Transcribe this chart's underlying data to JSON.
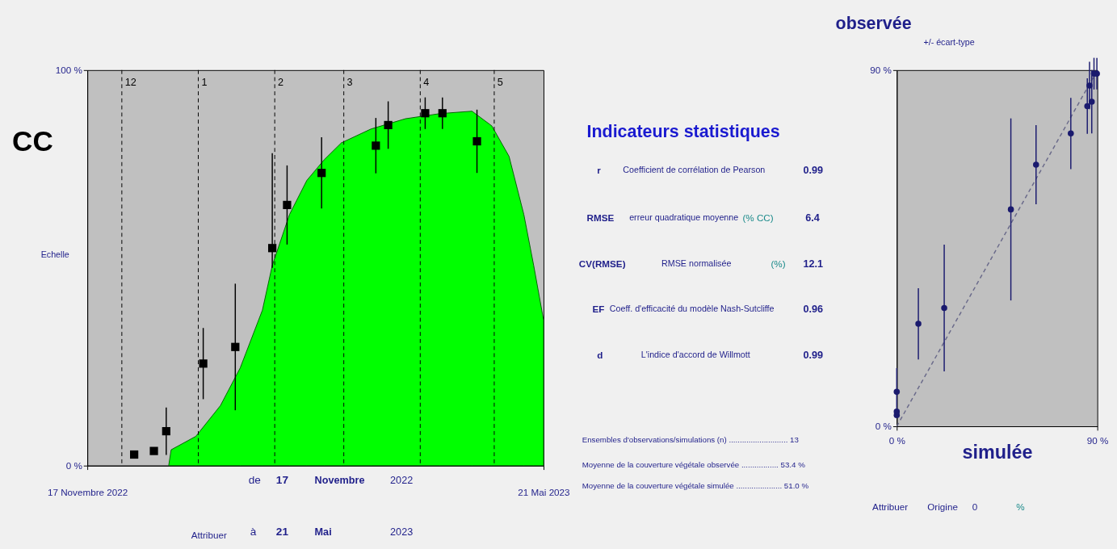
{
  "chart_data": [
    {
      "type": "area",
      "ylabel": "CC",
      "xlim": [
        "2022-11-17",
        "2023-05-21"
      ],
      "xticks": [
        {
          "value": "2022-11-17",
          "label": "17 Novembre 2022"
        },
        {
          "value": "2023-05-21",
          "label": "21 Mai 2023"
        }
      ],
      "ylim": [
        0,
        100
      ],
      "yticks": [
        {
          "value": 0,
          "label": "0 %"
        },
        {
          "value": 100,
          "label": "100 %"
        }
      ],
      "grid": false,
      "series": [
        {
          "color": "#00ff00",
          "x": [
            "2022-12-20",
            "2022-12-21",
            "2022-12-31",
            "2023-01-10",
            "2023-01-18",
            "2023-01-27",
            "2023-01-31",
            "2023-02-07",
            "2023-02-14",
            "2023-02-21",
            "2023-02-28",
            "2023-03-12",
            "2023-03-26",
            "2023-04-09",
            "2023-04-22",
            "2023-04-30",
            "2023-05-07",
            "2023-05-13",
            "2023-05-17",
            "2023-05-21"
          ],
          "values": [
            0,
            4,
            7.4,
            15.2,
            24.7,
            39.3,
            50.6,
            63.5,
            72.1,
            77.3,
            81.6,
            85.1,
            87.7,
            89.0,
            89.6,
            85.9,
            78.2,
            63.5,
            50.6,
            36.8
          ]
        },
        {
          "type": "scatter",
          "marker": "square",
          "color": "#000000",
          "x": [
            "2022-12-06",
            "2022-12-14",
            "2022-12-19",
            "2023-01-03",
            "2023-01-16",
            "2023-01-31",
            "2023-02-06",
            "2023-02-20",
            "2023-03-14",
            "2023-03-19",
            "2023-04-03",
            "2023-04-10",
            "2023-04-24"
          ],
          "values": [
            2.8,
            3.7,
            8.7,
            25.8,
            30.0,
            55.0,
            65.9,
            74.0,
            80.9,
            86.1,
            89.1,
            89.1,
            82.0
          ],
          "errors": [
            null,
            null,
            6,
            9,
            16,
            [
              50,
              79
            ],
            10,
            9,
            7,
            6,
            4,
            4,
            8
          ]
        }
      ],
      "ref_lines": [
        {
          "axis": "x",
          "value": "2022-12-01",
          "label": "12",
          "line_style": "dashed",
          "color": "#000000"
        },
        {
          "axis": "x",
          "value": "2023-01-01",
          "label": "1",
          "line_style": "dashed",
          "color": "#000000"
        },
        {
          "axis": "x",
          "value": "2023-02-01",
          "label": "2",
          "line_style": "dashed",
          "color": "#000000"
        },
        {
          "axis": "x",
          "value": "2023-03-01",
          "label": "3",
          "line_style": "dashed",
          "color": "#000000"
        },
        {
          "axis": "x",
          "value": "2023-04-01",
          "label": "4",
          "line_style": "dashed",
          "color": "#000000"
        },
        {
          "axis": "x",
          "value": "2023-05-01",
          "label": "5",
          "line_style": "dashed",
          "color": "#000000"
        }
      ],
      "annotations": [
        "Echelle",
        "de",
        "17",
        "Novembre",
        "2022",
        "à",
        "21",
        "Mai",
        "2023",
        "Attribuer"
      ]
    },
    {
      "type": "scatter",
      "ylabel": "observée",
      "xlabel": "simulée",
      "xlim": [
        0,
        90
      ],
      "xticks": [
        {
          "value": 0,
          "label": "0 %"
        },
        {
          "value": 90,
          "label": "90 %"
        }
      ],
      "ylim": [
        0,
        90
      ],
      "yticks": [
        {
          "value": 0,
          "label": "0 %"
        },
        {
          "value": 90,
          "label": "90 %"
        }
      ],
      "grid": false,
      "series": [
        {
          "type": "line",
          "color": "#6a6a8a",
          "line_style": "dashed",
          "marker": "none",
          "x": [
            0,
            90
          ],
          "values": [
            0,
            90
          ]
        },
        {
          "marker": "circle",
          "color": "#1a1a6e",
          "x": [
            0,
            0,
            0,
            9.7,
            21.3,
            51.2,
            62.5,
            78.1,
            85.5,
            86.5,
            87.5,
            88.5,
            89.8
          ],
          "values": [
            2.8,
            3.7,
            8.7,
            25.9,
            29.9,
            54.8,
            66.1,
            74.0,
            80.9,
            86.1,
            82.0,
            89.1,
            89.1
          ],
          "errors": [
            null,
            null,
            6,
            9,
            16,
            23,
            10,
            9,
            7,
            6,
            8,
            4,
            4
          ]
        }
      ],
      "annotations": [
        "+/- écart-type",
        "Indicateurs statistiques",
        "r",
        "Coefficient de corrélation de Pearson",
        "0.99",
        "RMSE",
        "erreur quadratique moyenne",
        "(% CC)",
        "6.4",
        "CV(RMSE)",
        "RMSE normalisée",
        "(%)",
        "12.1",
        "EF",
        "Coeff. d'efficacité du modèle Nash-Sutcliffe",
        "0.96",
        "d",
        "L'indice d'accord de Willmott",
        "0.99",
        "Ensembles d'observations/simulations (n) ........................... 13",
        "Moyenne de la couverture végétale observée ................. 53.4 %",
        "Moyenne de la couverture végétale simulée ..................... 51.0 %",
        "Attribuer",
        "Origine",
        "0",
        "%"
      ]
    }
  ]
}
